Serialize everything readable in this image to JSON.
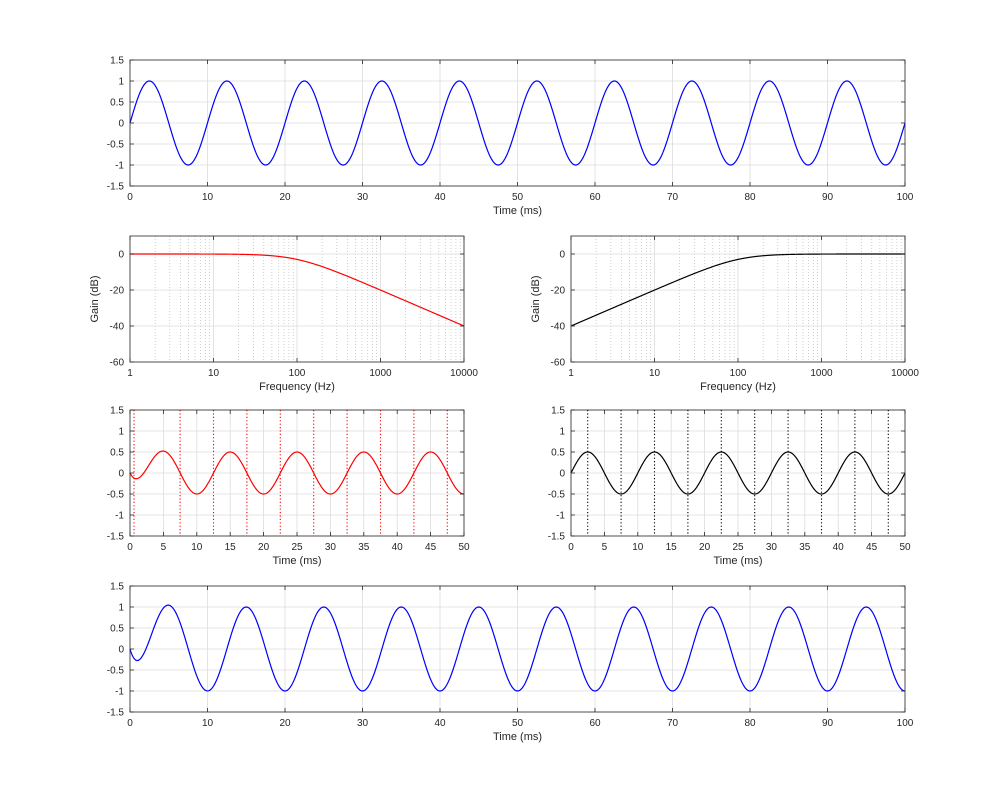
{
  "chart_data": [
    {
      "id": "top",
      "type": "line",
      "xlabel": "Time (ms)",
      "ylabel": "",
      "xlim": [
        0,
        100
      ],
      "ylim": [
        -1.5,
        1.5
      ],
      "xticks": [
        0,
        10,
        20,
        30,
        40,
        50,
        60,
        70,
        80,
        90,
        100
      ],
      "yticks": [
        -1.5,
        -1,
        -0.5,
        0,
        0.5,
        1,
        1.5
      ],
      "ytick_labels": [
        "-1.5",
        "-1",
        "-0.5",
        "0",
        "0.5",
        "1",
        "1.5"
      ],
      "grid": true,
      "series": [
        {
          "color": "#0000ff",
          "function": "sine",
          "amplitude": 1.0,
          "period_ms": 10,
          "phase_ms": 0
        }
      ]
    },
    {
      "id": "lowpass",
      "type": "line",
      "xlabel": "Frequency (Hz)",
      "ylabel": "Gain (dB)",
      "xscale": "log",
      "xlim": [
        1,
        10000
      ],
      "ylim": [
        -60,
        10
      ],
      "xticks": [
        1,
        10,
        100,
        1000,
        10000
      ],
      "yticks": [
        0,
        -20,
        -40,
        -60
      ],
      "grid": true,
      "minor_grid": true,
      "series": [
        {
          "color": "#ff0000",
          "function": "butterworth_lowpass",
          "order": 1,
          "cutoff_hz": 100
        }
      ]
    },
    {
      "id": "highpass",
      "type": "line",
      "xlabel": "Frequency (Hz)",
      "ylabel": "Gain (dB)",
      "xscale": "log",
      "xlim": [
        1,
        10000
      ],
      "ylim": [
        -60,
        10
      ],
      "xticks": [
        1,
        10,
        100,
        1000,
        10000
      ],
      "yticks": [
        0,
        -20,
        -40,
        -60
      ],
      "grid": true,
      "minor_grid": true,
      "series": [
        {
          "color": "#000000",
          "function": "butterworth_highpass",
          "order": 1,
          "cutoff_hz": 100
        }
      ]
    },
    {
      "id": "lowpass-output",
      "type": "line",
      "xlabel": "Time (ms)",
      "ylabel": "",
      "xlim": [
        0,
        50
      ],
      "ylim": [
        -1.5,
        1.5
      ],
      "xticks": [
        0,
        5,
        10,
        15,
        20,
        25,
        30,
        35,
        40,
        45,
        50
      ],
      "yticks": [
        -1.5,
        -1,
        -0.5,
        0,
        0.5,
        1,
        1.5
      ],
      "ytick_labels": [
        "-1.5",
        "-1",
        "-0.5",
        "0",
        "0.5",
        "1",
        "1.5"
      ],
      "grid": true,
      "series": [
        {
          "color": "#ff0000",
          "function": "lowpass_response",
          "peak_first": 0.6,
          "amplitude": 0.5,
          "period_ms": 10
        }
      ],
      "vlines": {
        "color": "#ff0000",
        "style": "dotted",
        "x": [
          0.6,
          7.5,
          12.5,
          17.5,
          22.5,
          27.5,
          32.5,
          37.5,
          42.5,
          47.5
        ]
      }
    },
    {
      "id": "highpass-output",
      "type": "line",
      "xlabel": "Time (ms)",
      "ylabel": "",
      "xlim": [
        0,
        50
      ],
      "ylim": [
        -1.5,
        1.5
      ],
      "xticks": [
        0,
        5,
        10,
        15,
        20,
        25,
        30,
        35,
        40,
        45,
        50
      ],
      "yticks": [
        -1.5,
        -1,
        -0.5,
        0,
        0.5,
        1,
        1.5
      ],
      "ytick_labels": [
        "-1.5",
        "-1",
        "-0.5",
        "0",
        "0.5",
        "1",
        "1.5"
      ],
      "grid": true,
      "series": [
        {
          "color": "#000000",
          "function": "highpass_response",
          "amplitude": 0.5,
          "period_ms": 10
        }
      ],
      "vlines": {
        "color": "#000000",
        "style": "dotted",
        "x": [
          2.5,
          7.5,
          12.5,
          17.5,
          22.5,
          27.5,
          32.5,
          37.5,
          42.5,
          47.5
        ]
      }
    },
    {
      "id": "bottom",
      "type": "line",
      "xlabel": "Time (ms)",
      "ylabel": "",
      "xlim": [
        0,
        100
      ],
      "ylim": [
        -1.5,
        1.5
      ],
      "xticks": [
        0,
        10,
        20,
        30,
        40,
        50,
        60,
        70,
        80,
        90,
        100
      ],
      "yticks": [
        -1.5,
        -1,
        -0.5,
        0,
        0.5,
        1,
        1.5
      ],
      "ytick_labels": [
        "-1.5",
        "-1",
        "-0.5",
        "0",
        "0.5",
        "1",
        "1.5"
      ],
      "grid": true,
      "series": [
        {
          "color": "#0000ff",
          "function": "sum_response",
          "amplitude": 1.0,
          "period_ms": 10,
          "dip_min": -0.25,
          "dip_time_ms": 1.0
        }
      ]
    }
  ]
}
